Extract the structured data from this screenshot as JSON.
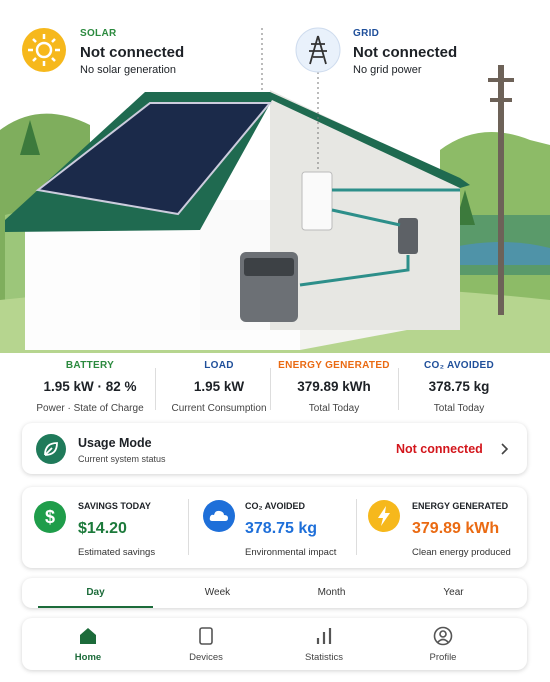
{
  "header": {
    "solar": {
      "label": "SOLAR",
      "status": "Not connected",
      "detail": "No solar generation"
    },
    "grid": {
      "label": "GRID",
      "status": "Not connected",
      "detail": "No grid power"
    }
  },
  "stats": [
    {
      "label": "BATTERY",
      "value": "1.95 kW · 82 %",
      "caption": "Power · State of Charge"
    },
    {
      "label": "LOAD",
      "value": "1.95 kW",
      "caption": "Current Consumption"
    },
    {
      "label": "ENERGY GENERATED",
      "value": "379.89 kWh",
      "caption": "Total Today"
    },
    {
      "label": "CO₂ AVOIDED",
      "value": "378.75 kg",
      "caption": "Total Today"
    }
  ],
  "usage_mode": {
    "title": "Usage Mode",
    "subtitle": "Current system status",
    "status": "Not connected"
  },
  "summary": [
    {
      "label": "SAVINGS TODAY",
      "value": "$14.20",
      "caption": "Estimated savings"
    },
    {
      "label": "CO₂ AVOIDED",
      "value": "378.75 kg",
      "caption": "Environmental impact"
    },
    {
      "label": "ENERGY GENERATED",
      "value": "379.89 kWh",
      "caption": "Clean energy produced"
    }
  ],
  "tabs": [
    "Day",
    "Week",
    "Month",
    "Year"
  ],
  "nav": [
    "Home",
    "Devices",
    "Statistics",
    "Profile"
  ]
}
